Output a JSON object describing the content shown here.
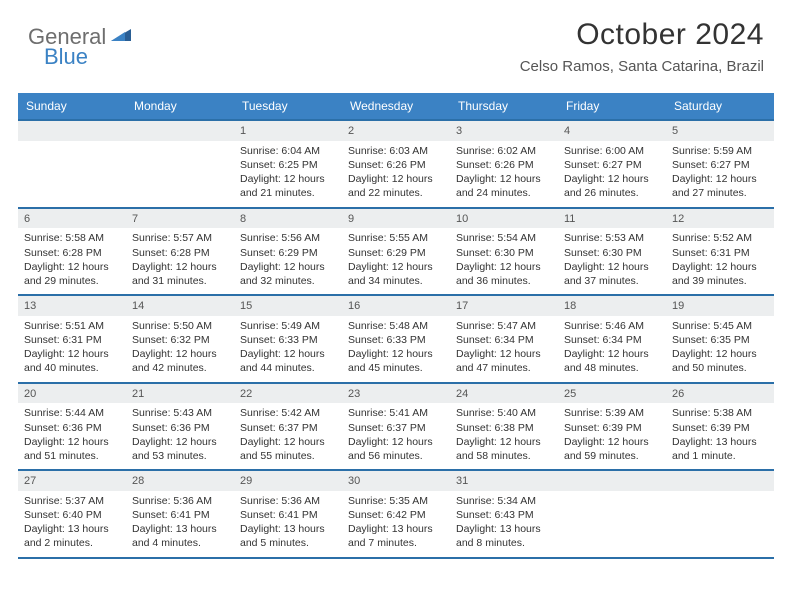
{
  "logo": {
    "text_gray": "General",
    "text_blue": "Blue"
  },
  "title": "October 2024",
  "location": "Celso Ramos, Santa Catarina, Brazil",
  "header_bg": "#3b82c4",
  "border_color": "#2b6fa8",
  "band_bg": "#eceeef",
  "weekdays": [
    "Sunday",
    "Monday",
    "Tuesday",
    "Wednesday",
    "Thursday",
    "Friday",
    "Saturday"
  ],
  "weeks": [
    [
      null,
      null,
      {
        "n": "1",
        "sr": "Sunrise: 6:04 AM",
        "ss": "Sunset: 6:25 PM",
        "dl": "Daylight: 12 hours and 21 minutes."
      },
      {
        "n": "2",
        "sr": "Sunrise: 6:03 AM",
        "ss": "Sunset: 6:26 PM",
        "dl": "Daylight: 12 hours and 22 minutes."
      },
      {
        "n": "3",
        "sr": "Sunrise: 6:02 AM",
        "ss": "Sunset: 6:26 PM",
        "dl": "Daylight: 12 hours and 24 minutes."
      },
      {
        "n": "4",
        "sr": "Sunrise: 6:00 AM",
        "ss": "Sunset: 6:27 PM",
        "dl": "Daylight: 12 hours and 26 minutes."
      },
      {
        "n": "5",
        "sr": "Sunrise: 5:59 AM",
        "ss": "Sunset: 6:27 PM",
        "dl": "Daylight: 12 hours and 27 minutes."
      }
    ],
    [
      {
        "n": "6",
        "sr": "Sunrise: 5:58 AM",
        "ss": "Sunset: 6:28 PM",
        "dl": "Daylight: 12 hours and 29 minutes."
      },
      {
        "n": "7",
        "sr": "Sunrise: 5:57 AM",
        "ss": "Sunset: 6:28 PM",
        "dl": "Daylight: 12 hours and 31 minutes."
      },
      {
        "n": "8",
        "sr": "Sunrise: 5:56 AM",
        "ss": "Sunset: 6:29 PM",
        "dl": "Daylight: 12 hours and 32 minutes."
      },
      {
        "n": "9",
        "sr": "Sunrise: 5:55 AM",
        "ss": "Sunset: 6:29 PM",
        "dl": "Daylight: 12 hours and 34 minutes."
      },
      {
        "n": "10",
        "sr": "Sunrise: 5:54 AM",
        "ss": "Sunset: 6:30 PM",
        "dl": "Daylight: 12 hours and 36 minutes."
      },
      {
        "n": "11",
        "sr": "Sunrise: 5:53 AM",
        "ss": "Sunset: 6:30 PM",
        "dl": "Daylight: 12 hours and 37 minutes."
      },
      {
        "n": "12",
        "sr": "Sunrise: 5:52 AM",
        "ss": "Sunset: 6:31 PM",
        "dl": "Daylight: 12 hours and 39 minutes."
      }
    ],
    [
      {
        "n": "13",
        "sr": "Sunrise: 5:51 AM",
        "ss": "Sunset: 6:31 PM",
        "dl": "Daylight: 12 hours and 40 minutes."
      },
      {
        "n": "14",
        "sr": "Sunrise: 5:50 AM",
        "ss": "Sunset: 6:32 PM",
        "dl": "Daylight: 12 hours and 42 minutes."
      },
      {
        "n": "15",
        "sr": "Sunrise: 5:49 AM",
        "ss": "Sunset: 6:33 PM",
        "dl": "Daylight: 12 hours and 44 minutes."
      },
      {
        "n": "16",
        "sr": "Sunrise: 5:48 AM",
        "ss": "Sunset: 6:33 PM",
        "dl": "Daylight: 12 hours and 45 minutes."
      },
      {
        "n": "17",
        "sr": "Sunrise: 5:47 AM",
        "ss": "Sunset: 6:34 PM",
        "dl": "Daylight: 12 hours and 47 minutes."
      },
      {
        "n": "18",
        "sr": "Sunrise: 5:46 AM",
        "ss": "Sunset: 6:34 PM",
        "dl": "Daylight: 12 hours and 48 minutes."
      },
      {
        "n": "19",
        "sr": "Sunrise: 5:45 AM",
        "ss": "Sunset: 6:35 PM",
        "dl": "Daylight: 12 hours and 50 minutes."
      }
    ],
    [
      {
        "n": "20",
        "sr": "Sunrise: 5:44 AM",
        "ss": "Sunset: 6:36 PM",
        "dl": "Daylight: 12 hours and 51 minutes."
      },
      {
        "n": "21",
        "sr": "Sunrise: 5:43 AM",
        "ss": "Sunset: 6:36 PM",
        "dl": "Daylight: 12 hours and 53 minutes."
      },
      {
        "n": "22",
        "sr": "Sunrise: 5:42 AM",
        "ss": "Sunset: 6:37 PM",
        "dl": "Daylight: 12 hours and 55 minutes."
      },
      {
        "n": "23",
        "sr": "Sunrise: 5:41 AM",
        "ss": "Sunset: 6:37 PM",
        "dl": "Daylight: 12 hours and 56 minutes."
      },
      {
        "n": "24",
        "sr": "Sunrise: 5:40 AM",
        "ss": "Sunset: 6:38 PM",
        "dl": "Daylight: 12 hours and 58 minutes."
      },
      {
        "n": "25",
        "sr": "Sunrise: 5:39 AM",
        "ss": "Sunset: 6:39 PM",
        "dl": "Daylight: 12 hours and 59 minutes."
      },
      {
        "n": "26",
        "sr": "Sunrise: 5:38 AM",
        "ss": "Sunset: 6:39 PM",
        "dl": "Daylight: 13 hours and 1 minute."
      }
    ],
    [
      {
        "n": "27",
        "sr": "Sunrise: 5:37 AM",
        "ss": "Sunset: 6:40 PM",
        "dl": "Daylight: 13 hours and 2 minutes."
      },
      {
        "n": "28",
        "sr": "Sunrise: 5:36 AM",
        "ss": "Sunset: 6:41 PM",
        "dl": "Daylight: 13 hours and 4 minutes."
      },
      {
        "n": "29",
        "sr": "Sunrise: 5:36 AM",
        "ss": "Sunset: 6:41 PM",
        "dl": "Daylight: 13 hours and 5 minutes."
      },
      {
        "n": "30",
        "sr": "Sunrise: 5:35 AM",
        "ss": "Sunset: 6:42 PM",
        "dl": "Daylight: 13 hours and 7 minutes."
      },
      {
        "n": "31",
        "sr": "Sunrise: 5:34 AM",
        "ss": "Sunset: 6:43 PM",
        "dl": "Daylight: 13 hours and 8 minutes."
      },
      null,
      null
    ]
  ]
}
